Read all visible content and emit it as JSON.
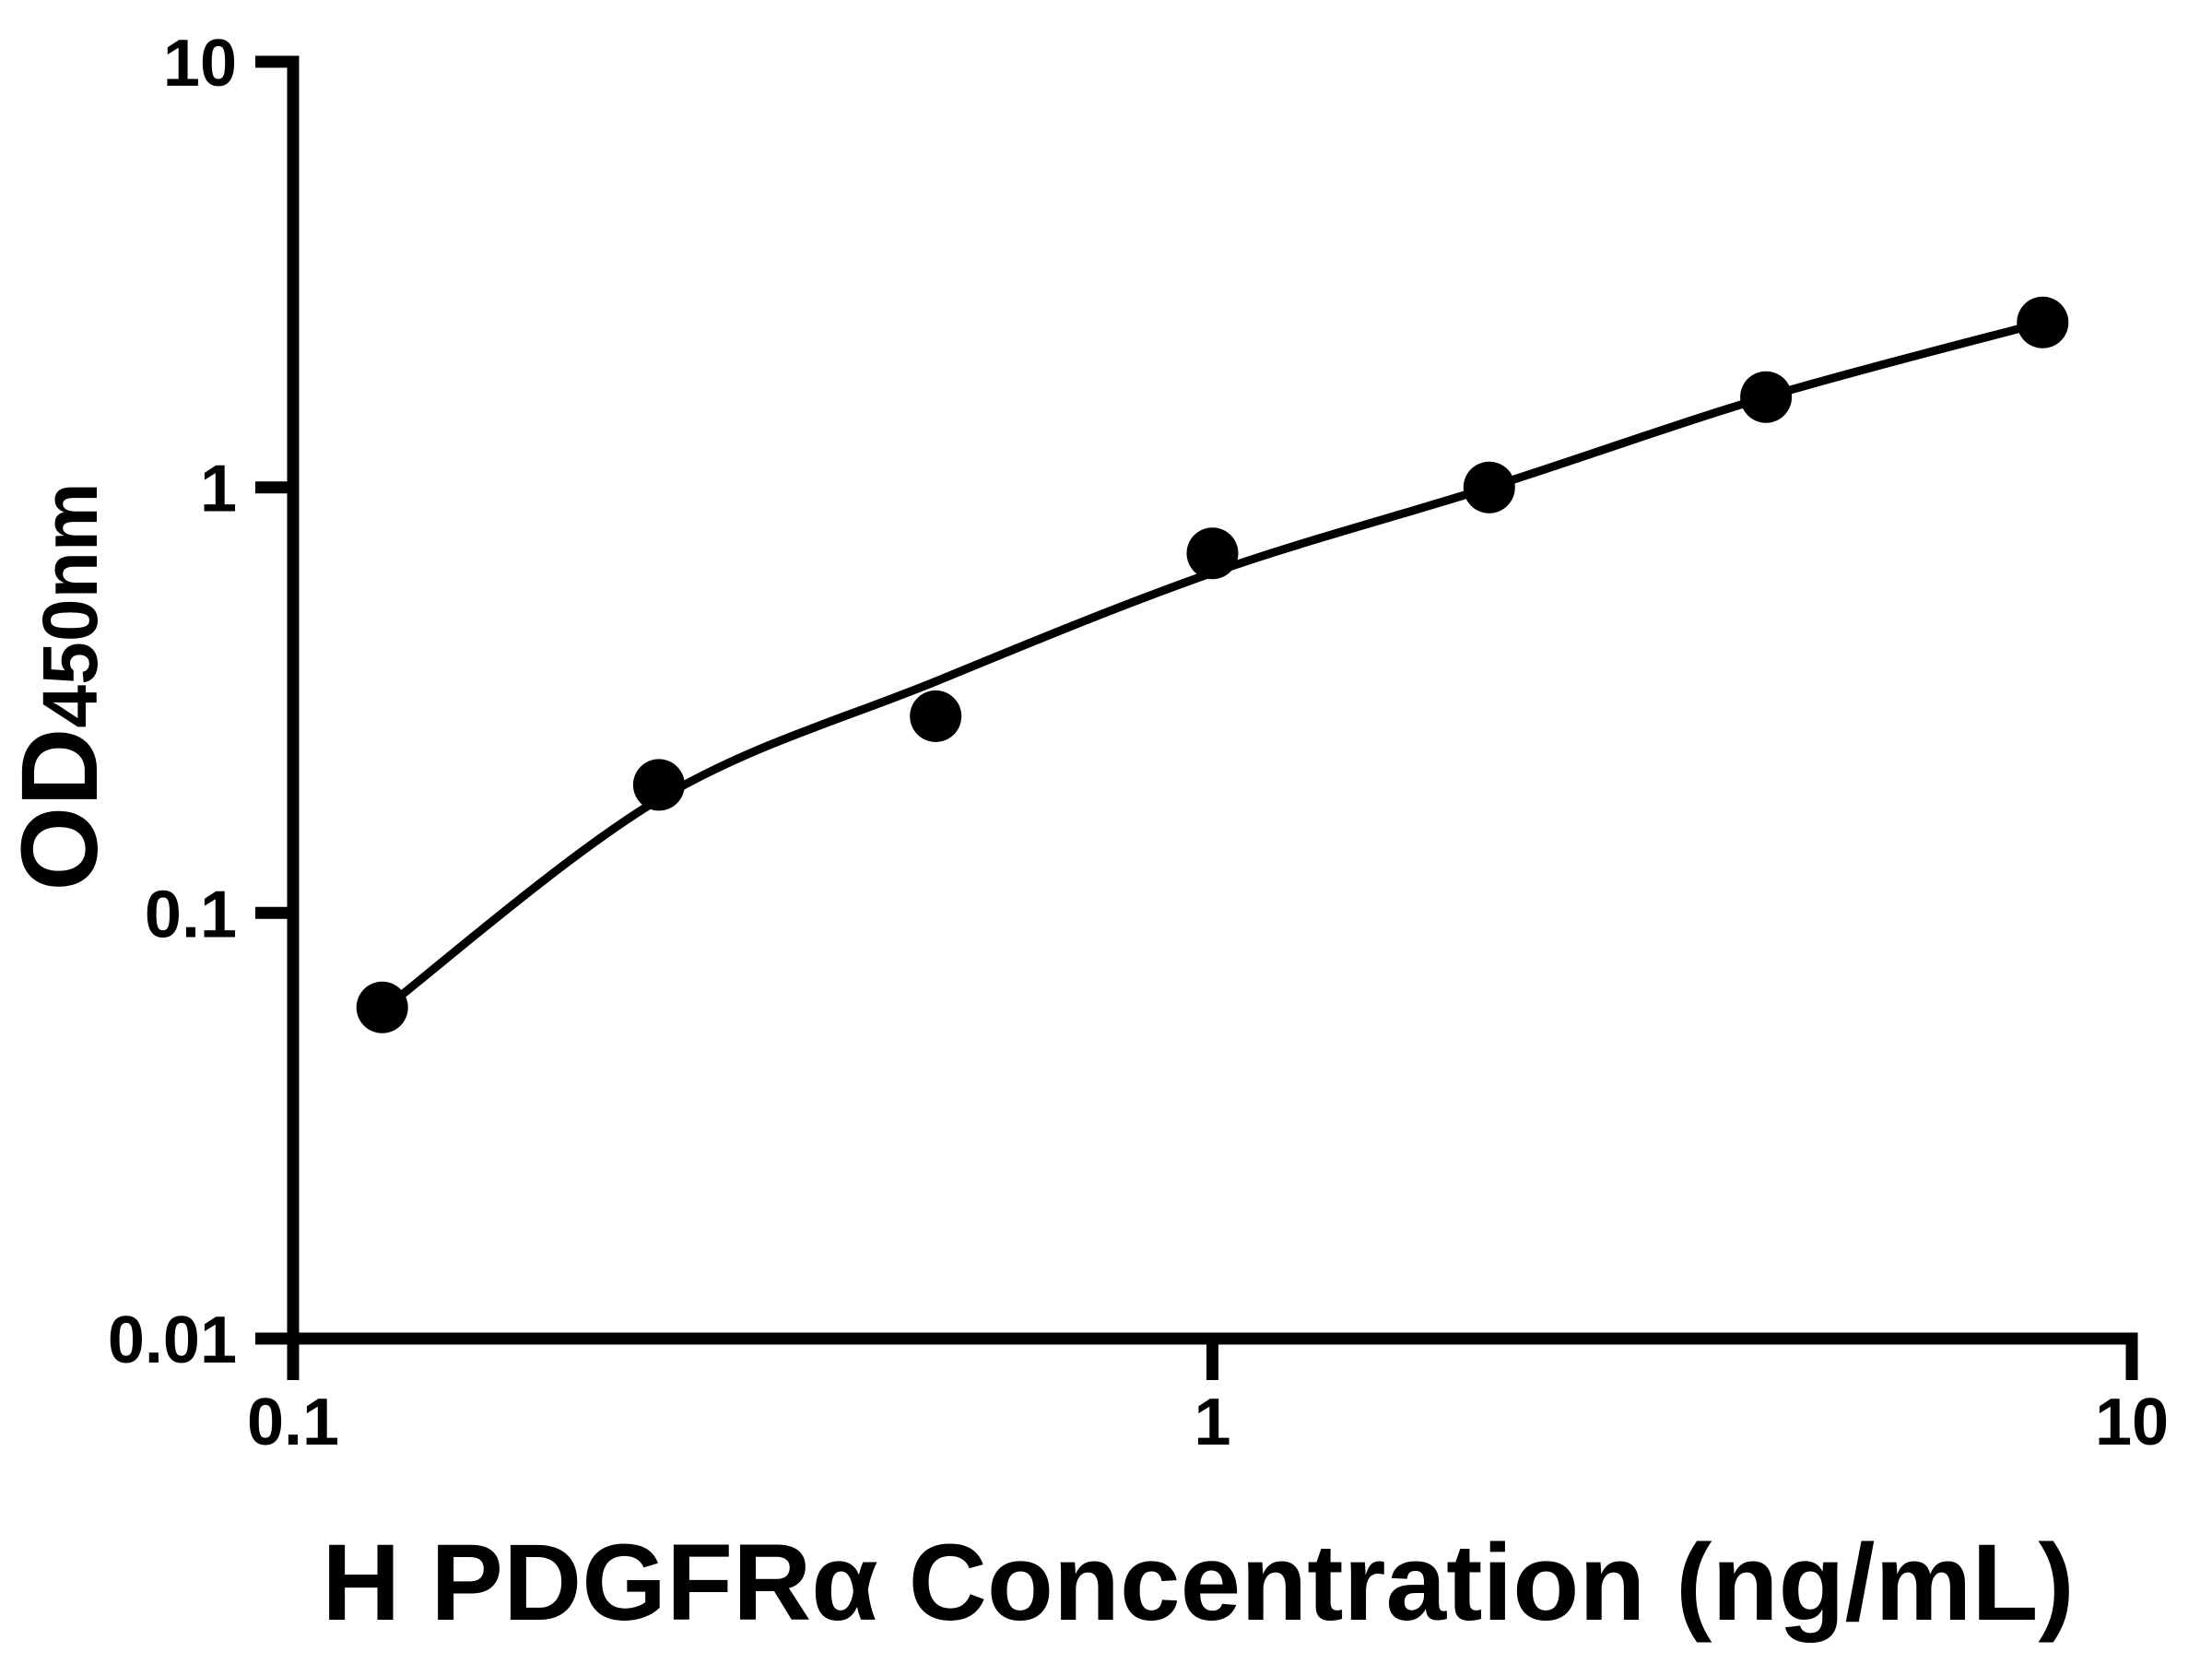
{
  "chart_data": {
    "type": "scatter",
    "description": "ELISA standard curve, log-log axes, black points with fitted line",
    "xlabel": "H PDGFRα Concentration (ng/mL)",
    "ylabel_main": "OD",
    "ylabel_subscript": "450nm",
    "x_scale": "log",
    "y_scale": "log",
    "xlim": [
      0.1,
      10
    ],
    "ylim": [
      0.01,
      10
    ],
    "grid": "off",
    "legend": "none",
    "x_ticks": [
      {
        "value": 0.1,
        "label": "0.1"
      },
      {
        "value": 1,
        "label": "1"
      },
      {
        "value": 10,
        "label": "10"
      }
    ],
    "y_ticks": [
      {
        "value": 10,
        "label": "10"
      },
      {
        "value": 1,
        "label": "1"
      },
      {
        "value": 0.1,
        "label": "0.1"
      },
      {
        "value": 0.01,
        "label": "0.01"
      }
    ],
    "series": [
      {
        "name": "standard-points",
        "marker": "filled-circle",
        "color": "#000000",
        "points": [
          {
            "x": 0.125,
            "y": 0.06
          },
          {
            "x": 0.25,
            "y": 0.2
          },
          {
            "x": 0.5,
            "y": 0.29
          },
          {
            "x": 1,
            "y": 0.7
          },
          {
            "x": 2,
            "y": 1.0
          },
          {
            "x": 4,
            "y": 1.63
          },
          {
            "x": 8,
            "y": 2.44
          }
        ]
      }
    ],
    "fit_curve": {
      "name": "fitted-standard-curve",
      "color": "#000000",
      "points": [
        {
          "x": 0.125,
          "y": 0.059
        },
        {
          "x": 0.25,
          "y": 0.185
        },
        {
          "x": 0.5,
          "y": 0.35
        },
        {
          "x": 1,
          "y": 0.63
        },
        {
          "x": 2,
          "y": 1.0
        },
        {
          "x": 4,
          "y": 1.63
        },
        {
          "x": 8,
          "y": 2.44
        }
      ]
    },
    "colors": {
      "foreground": "#000000",
      "background": "#ffffff"
    }
  }
}
